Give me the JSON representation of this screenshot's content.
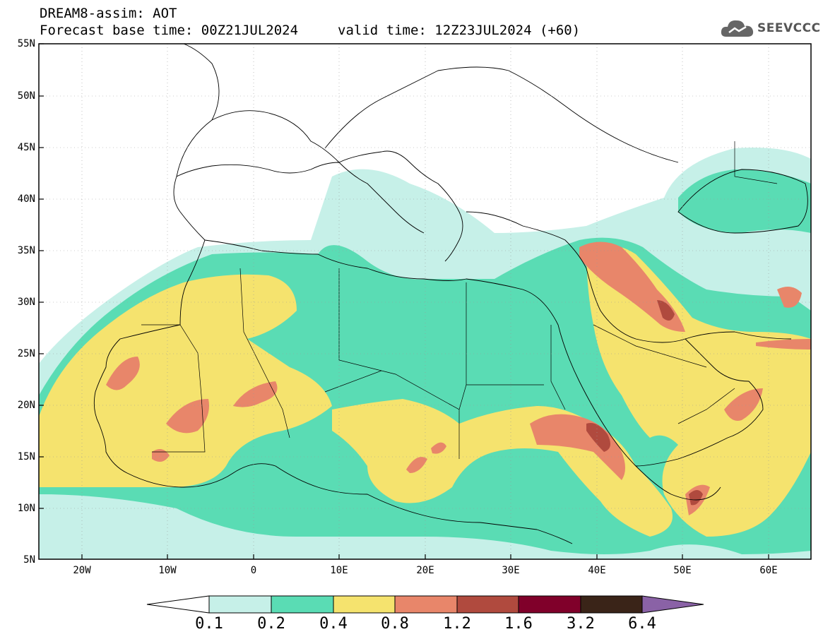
{
  "header": {
    "title": "DREAM8-assim: AOT",
    "base_time": "Forecast base time: 00Z21JUL2024",
    "valid_time": "valid time: 12Z23JUL2024 (+60)"
  },
  "logo": {
    "text": "SEEVCCC",
    "icon": "cloud-logo-icon"
  },
  "map": {
    "lat_labels": [
      "55N",
      "50N",
      "45N",
      "40N",
      "35N",
      "30N",
      "25N",
      "20N",
      "15N",
      "10N",
      "5N"
    ],
    "lon_labels": [
      "20W",
      "10W",
      "0",
      "10E",
      "20E",
      "30E",
      "40E",
      "50E",
      "60E"
    ],
    "field": "AOT"
  },
  "colorbar": {
    "levels": [
      "0.1",
      "0.2",
      "0.4",
      "0.8",
      "1.2",
      "1.6",
      "3.2",
      "6.4"
    ],
    "colors": [
      "#ffffff",
      "#c6f0e8",
      "#5adcb4",
      "#f5e36e",
      "#e8866a",
      "#b04a3e",
      "#80002a",
      "#3a2418",
      "#8a62a6"
    ]
  }
}
